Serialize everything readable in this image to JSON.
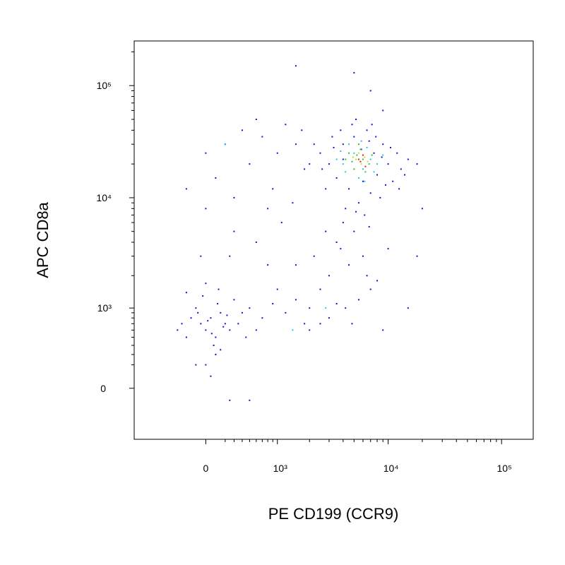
{
  "chart_data": {
    "type": "scatter",
    "xlabel": "PE CD199 (CCR9)",
    "ylabel": "APC CD8a",
    "xscale": "biexponential",
    "yscale": "biexponential",
    "xlim": [
      -1000,
      190000
    ],
    "ylim": [
      -500,
      250000
    ],
    "xticks": [
      0,
      {
        "value": 1000,
        "label": "10³"
      },
      {
        "value": 10000,
        "label": "10⁴"
      },
      {
        "value": 100000,
        "label": "10⁵"
      }
    ],
    "yticks": [
      0,
      {
        "value": 1000,
        "label": "10³"
      },
      {
        "value": 10000,
        "label": "10⁴"
      },
      {
        "value": 100000,
        "label": "10⁵"
      }
    ],
    "xminorticks": [
      200,
      300,
      400,
      500,
      600,
      700,
      800,
      900,
      2000,
      3000,
      4000,
      5000,
      6000,
      7000,
      8000,
      9000,
      20000,
      30000,
      40000,
      50000,
      60000,
      70000,
      80000,
      90000
    ],
    "yminorticks": [
      200,
      300,
      400,
      500,
      600,
      700,
      800,
      900,
      2000,
      3000,
      4000,
      5000,
      6000,
      7000,
      8000,
      9000,
      20000,
      30000,
      40000,
      50000,
      60000,
      70000,
      80000,
      90000,
      200000
    ],
    "series": [
      {
        "color": "#1010e0",
        "x": [
          3000,
          3500,
          4000,
          4500,
          5000,
          5500,
          6000,
          6500,
          7000,
          7500,
          8000,
          9000,
          10000,
          11000,
          12000,
          13000,
          15000,
          18000,
          2500,
          2200,
          2800,
          3200,
          3800,
          4200,
          4800,
          5200,
          6200,
          6800,
          7200,
          8500,
          9500,
          4000,
          3300,
          2600,
          5800,
          7800,
          8800,
          10500,
          12500,
          14000,
          4000,
          3500,
          5000,
          6000,
          4500,
          3000,
          7000,
          5500,
          2500,
          2000,
          3000,
          1500,
          1800,
          2200,
          2800,
          4200,
          6500,
          8000,
          9000,
          3800,
          5200,
          6800,
          1200,
          900,
          700,
          1000,
          1500,
          2000,
          2500,
          3500,
          4800,
          -50,
          0,
          50,
          100,
          150,
          -100,
          200,
          250,
          -150,
          300,
          -200,
          80,
          120,
          -80,
          180,
          20,
          60,
          -30,
          220,
          400,
          350,
          500,
          -250,
          -300,
          150,
          0,
          50,
          100,
          -100,
          250,
          500,
          130,
          450,
          600,
          0,
          -200,
          0,
          100,
          200,
          300,
          400,
          500,
          700,
          800,
          1000,
          1200,
          1500,
          1800,
          600,
          300,
          0,
          -200,
          900,
          1100,
          1400,
          1700,
          2000,
          250,
          600,
          -50,
          800,
          1500,
          5000,
          7000,
          9000,
          18000,
          15000,
          20000,
          10000
        ],
        "y": [
          20000,
          15000,
          30000,
          12000,
          35000,
          9000,
          14000,
          40000,
          11000,
          25000,
          16000,
          30000,
          20000,
          14000,
          25000,
          18000,
          22000,
          20000,
          25000,
          30000,
          12000,
          35000,
          40000,
          8000,
          45000,
          50000,
          7000,
          32000,
          45000,
          10000,
          13000,
          22000,
          28000,
          18000,
          27000,
          35000,
          23000,
          28000,
          12000,
          16000,
          6000,
          4000,
          5000,
          3000,
          2500,
          2000,
          1500,
          1200,
          1500,
          1000,
          800,
          1200,
          700,
          3000,
          5000,
          1000,
          2000,
          1800,
          600,
          3500,
          7500,
          5500,
          900,
          1100,
          800,
          1500,
          2500,
          600,
          700,
          1100,
          700,
          700,
          600,
          800,
          500,
          900,
          1000,
          700,
          600,
          800,
          1200,
          500,
          400,
          1100,
          900,
          650,
          750,
          550,
          1300,
          850,
          900,
          700,
          1000,
          700,
          600,
          350,
          200,
          100,
          300,
          200,
          -100,
          -100,
          1500,
          500,
          600,
          1700,
          1400,
          25000,
          15000,
          30000,
          10000,
          40000,
          20000,
          35000,
          8000,
          25000,
          45000,
          30000,
          18000,
          50000,
          5000,
          8000,
          12000,
          12000,
          6000,
          9000,
          40000,
          20000,
          3000,
          4000,
          3000,
          2500,
          150000,
          130000,
          90000,
          60000,
          3000,
          1000,
          8000,
          3500
        ]
      },
      {
        "color": "#20c8e8",
        "x": [
          4000,
          5000,
          6000,
          4500,
          7000,
          5500,
          3500,
          6500,
          8000,
          4200,
          5800,
          7500,
          3800,
          9000,
          6200,
          1400,
          200,
          2800
        ],
        "y": [
          20000,
          25000,
          18000,
          30000,
          22000,
          15000,
          22000,
          28000,
          20000,
          17000,
          32000,
          17000,
          26000,
          24000,
          14000,
          600,
          30000,
          1000
        ]
      },
      {
        "color": "#30c030",
        "x": [
          4800,
          5300,
          6000,
          5000,
          5700,
          6800,
          4500,
          6300,
          5500,
          7200,
          4200
        ],
        "y": [
          21000,
          24000,
          22000,
          18000,
          27000,
          20000,
          25000,
          17000,
          30000,
          24000,
          22000
        ]
      },
      {
        "color": "#d8d820",
        "x": [
          5200,
          5800,
          5500,
          6200,
          4900,
          6600
        ],
        "y": [
          22000,
          20000,
          25000,
          23000,
          23000,
          21000
        ]
      },
      {
        "color": "#e82010",
        "x": [
          5500,
          6000,
          5700,
          6300
        ],
        "y": [
          22000,
          24000,
          21000,
          19000
        ]
      }
    ]
  }
}
